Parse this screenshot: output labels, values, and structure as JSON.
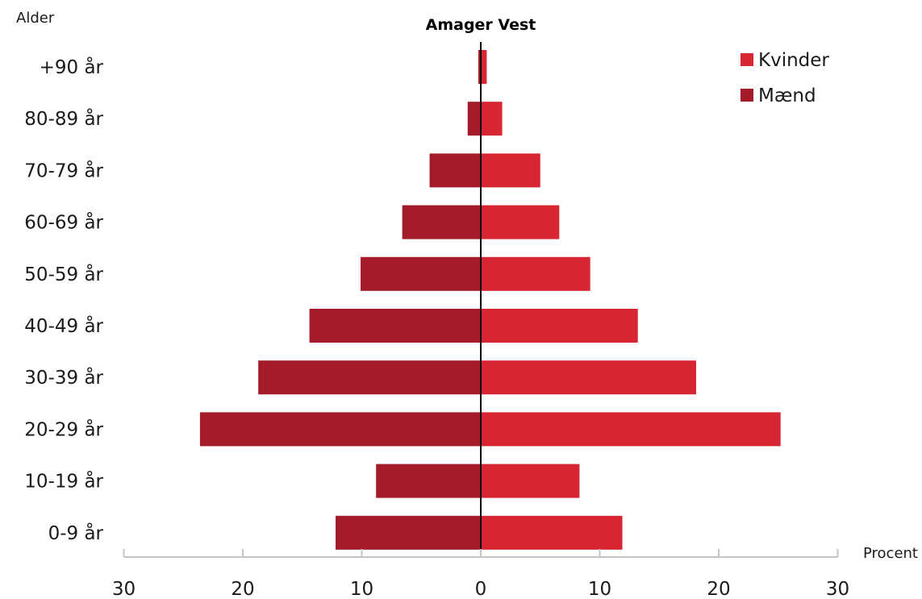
{
  "chart_data": {
    "type": "bar",
    "orientation": "horizontal-pyramid",
    "title": "Amager Vest",
    "ylabel": "Alder",
    "xlabel": "Procent",
    "categories": [
      "+90 år",
      "80-89 år",
      "70-79 år",
      "60-69 år",
      "50-59 år",
      "40-49 år",
      "30-39 år",
      "20-29 år",
      "10-19 år",
      "0-9 år"
    ],
    "series": [
      {
        "name": "Kvinder",
        "side": "right",
        "color": "#d72534",
        "values": [
          0.5,
          1.8,
          5.0,
          6.6,
          9.2,
          13.2,
          18.1,
          25.2,
          8.3,
          11.9
        ]
      },
      {
        "name": "Mænd",
        "side": "left",
        "color": "#a31a28",
        "values": [
          0.2,
          1.1,
          4.3,
          6.6,
          10.1,
          14.4,
          18.7,
          23.6,
          8.8,
          12.2
        ]
      }
    ],
    "xlim": [
      -30,
      30
    ],
    "xticks": [
      -30,
      -20,
      -10,
      0,
      10,
      20,
      30
    ],
    "xtick_labels": [
      "30",
      "20",
      "10",
      "0",
      "10",
      "20",
      "30"
    ],
    "legend_position": "top-right",
    "grid": false
  }
}
